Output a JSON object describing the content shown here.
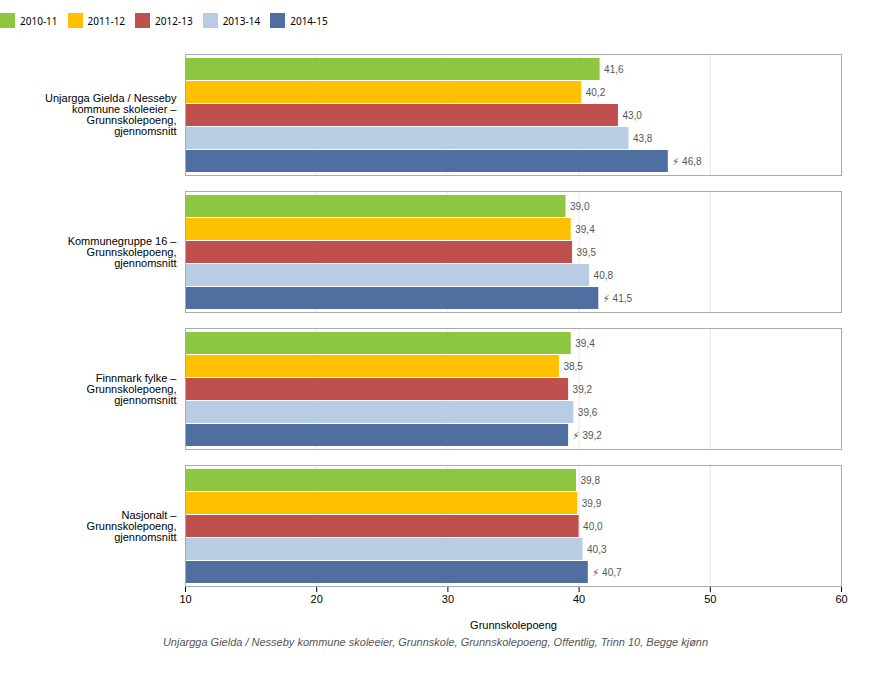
{
  "chart_data": {
    "type": "bar",
    "orientation": "horizontal",
    "categories": [
      "Unjargga Gielda / Nesseby\nkommune skoleeier –\nGrunnskolepoeng,\ngjennomsnitt",
      "Kommunegruppe 16 –\nGrunnskolepoeng,\ngjennomsnitt",
      "Finnmark fylke –\nGrunnskolepoeng,\ngjennomsnitt",
      "Nasjonalt –\nGrunnskolepoeng,\ngjennomsnitt"
    ],
    "series": [
      {
        "name": "2010-11",
        "color": "#8dc63f",
        "values": [
          41.6,
          39.0,
          39.4,
          39.8
        ],
        "value_labels": [
          "41,6",
          "39,0",
          "39,4",
          "39,8"
        ]
      },
      {
        "name": "2011-12",
        "color": "#ffc000",
        "values": [
          40.2,
          39.4,
          38.5,
          39.9
        ],
        "value_labels": [
          "40,2",
          "39,4",
          "38,5",
          "39,9"
        ]
      },
      {
        "name": "2012-13",
        "color": "#c0504d",
        "values": [
          43.0,
          39.5,
          39.2,
          40.0
        ],
        "value_labels": [
          "43,0",
          "39,5",
          "39,2",
          "40,0"
        ]
      },
      {
        "name": "2013-14",
        "color": "#b8cce4",
        "values": [
          43.8,
          40.8,
          39.6,
          40.3
        ],
        "value_labels": [
          "43,8",
          "40,8",
          "39,6",
          "40,3"
        ]
      },
      {
        "name": "2014-15",
        "color": "#4f6fa0",
        "values": [
          46.8,
          41.5,
          39.2,
          40.7
        ],
        "value_labels": [
          "⚡ 46,8",
          "⚡ 41,5",
          "⚡ 39,2",
          "⚡ 40,7"
        ]
      }
    ],
    "x_label": "Grunnskolepoeng",
    "xlim": [
      10,
      60
    ],
    "xticks": [
      10,
      20,
      30,
      40,
      50,
      60
    ],
    "grid": true,
    "legend": "top",
    "data_labels": true,
    "caption": "Unjargga Gielda / Nesseby kommune skoleeier, Grunnskole, Grunnskolepoeng, Offentlig, Trinn 10, Begge kjønn"
  }
}
